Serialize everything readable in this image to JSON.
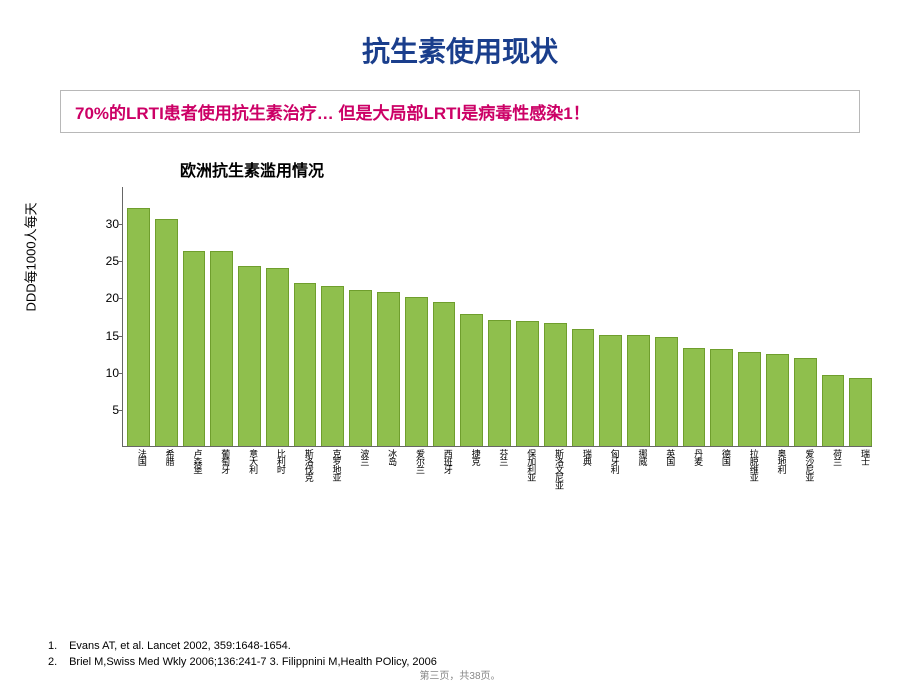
{
  "title": "抗生素使用现状",
  "callout": "70%的LRTI患者使用抗生素治疗…   但是大局部LRTI是病毒性感染1！",
  "chart": {
    "subtitle": "欧洲抗生素滥用情况",
    "y_axis_label": "DDD每1000人每天",
    "ylim": [
      0,
      35
    ],
    "yticks": [
      5,
      10,
      15,
      20,
      25,
      30
    ],
    "bar_color": "#8fbf4d",
    "bar_outline": "#6f9e2d",
    "axis_color": "#666666",
    "categories": [
      "法国",
      "希腊",
      "卢森堡",
      "葡萄牙",
      "意大利",
      "比利时",
      "斯洛伐克",
      "克罗地亚",
      "波兰",
      "冰岛",
      "爱尔兰",
      "西班牙",
      "捷克",
      "芬兰",
      "保加利亚",
      "斯洛文尼亚",
      "瑞典",
      "匈牙利",
      "挪威",
      "英国",
      "丹麦",
      "德国",
      "拉脱维亚",
      "奥地利",
      "爱沙尼亚",
      "荷兰",
      "瑞士"
    ],
    "values": [
      32.0,
      30.5,
      26.3,
      26.2,
      24.2,
      23.9,
      22.0,
      21.5,
      21.0,
      20.8,
      20.0,
      19.4,
      17.8,
      17.0,
      16.8,
      16.5,
      15.8,
      15.0,
      14.9,
      14.7,
      13.2,
      13.0,
      12.6,
      12.4,
      11.8,
      9.6,
      9.2
    ]
  },
  "footnotes": {
    "f1_idx": "1.",
    "f1": "Evans AT, et al. Lancet 2002, 359:1648-1654.",
    "f2_idx": "2.",
    "f2": "Briel M,Swiss Med Wkly 2006;136:241-7        3. Filippnini M,Health POlicy, 2006"
  },
  "page_number": "第三页，共38页。"
}
